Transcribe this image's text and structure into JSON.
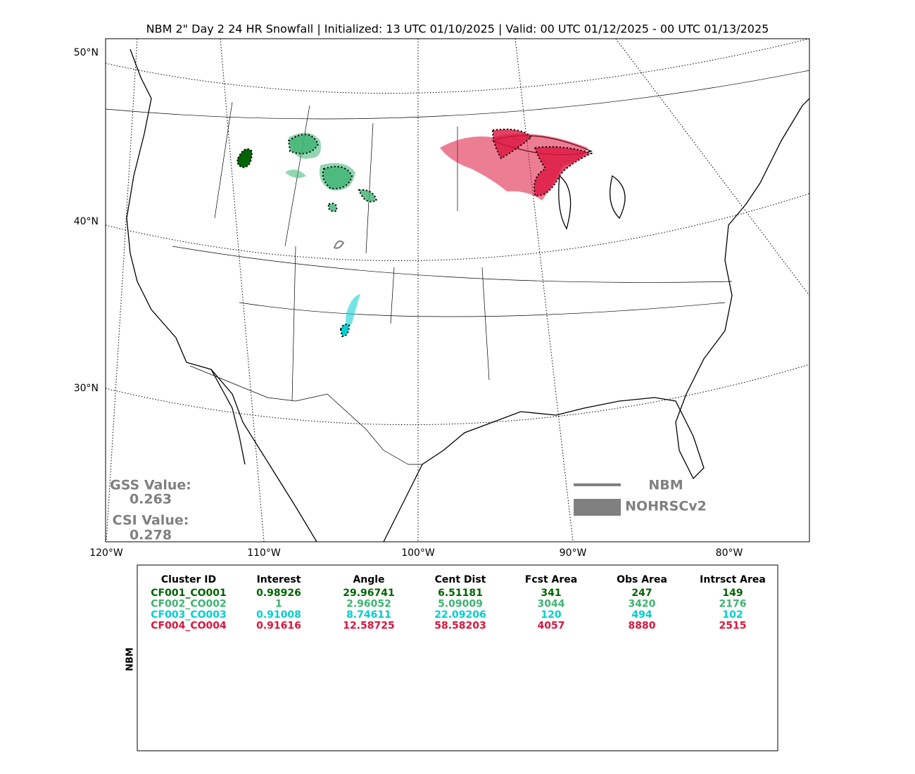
{
  "title": "NBM 2\" Day 2 24 HR Snowfall | Initialized: 13 UTC 01/10/2025 | Valid: 00 UTC 01/12/2025 - 00 UTC 01/13/2025",
  "map": {
    "lat_labels": [
      "50°N",
      "40°N",
      "30°N"
    ],
    "lon_labels": [
      "120°W",
      "110°W",
      "100°W",
      "90°W",
      "80°W"
    ],
    "gss_label": "GSS Value:",
    "gss_value": "0.263",
    "csi_label": "CSI Value:",
    "csi_value": "0.278",
    "legend": [
      "NBM",
      "NOHRSCv2"
    ]
  },
  "table": {
    "side_label": "NBM",
    "headers": [
      "Cluster ID",
      "Interest",
      "Angle",
      "Cent Dist",
      "Fcst Area",
      "Obs Area",
      "Intrsct Area"
    ],
    "rows": [
      [
        "CF001_CO001",
        "0.98926",
        "29.96741",
        "6.51181",
        "341",
        "247",
        "149"
      ],
      [
        "CF002_CO002",
        "1",
        "2.96052",
        "5.09009",
        "3044",
        "3420",
        "2176"
      ],
      [
        "CF003_CO003",
        "0.91008",
        "8.74611",
        "22.09206",
        "120",
        "494",
        "102"
      ],
      [
        "CF004_CO004",
        "0.91616",
        "12.58725",
        "58.58203",
        "4057",
        "8880",
        "2515"
      ]
    ]
  }
}
